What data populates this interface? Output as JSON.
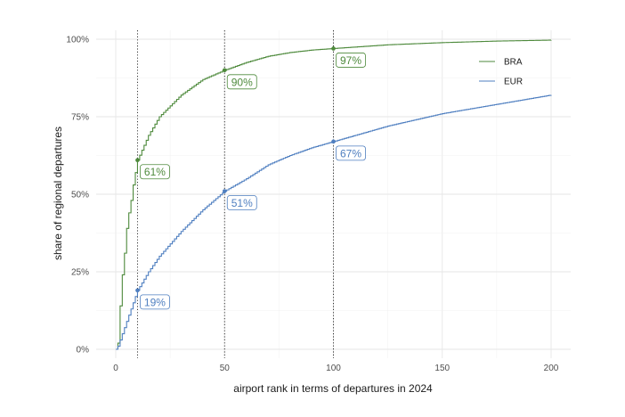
{
  "chart_data": {
    "type": "line",
    "xlabel": "airport rank in terms of departures in 2024",
    "ylabel": "share of regional departures",
    "xlim": [
      0,
      200
    ],
    "ylim": [
      0,
      1
    ],
    "x_ticks": [
      0,
      50,
      100,
      150,
      200
    ],
    "x_tick_labels": [
      "0",
      "50",
      "100",
      "150",
      "200"
    ],
    "y_ticks": [
      0,
      0.25,
      0.5,
      0.75,
      1.0
    ],
    "y_tick_labels": [
      "0%",
      "25%",
      "50%",
      "75%",
      "100%"
    ],
    "grid": true,
    "legend_position": "top-right",
    "vlines": [
      10,
      50,
      100
    ],
    "series": [
      {
        "name": "BRA",
        "color": "#4e8a3c",
        "x": [
          1,
          2,
          3,
          4,
          5,
          6,
          7,
          8,
          9,
          10,
          15,
          20,
          30,
          40,
          50,
          60,
          70,
          80,
          90,
          100,
          125,
          150,
          175,
          200
        ],
        "y": [
          0.02,
          0.14,
          0.24,
          0.31,
          0.39,
          0.44,
          0.48,
          0.53,
          0.57,
          0.61,
          0.69,
          0.75,
          0.82,
          0.87,
          0.9,
          0.925,
          0.945,
          0.957,
          0.965,
          0.97,
          0.982,
          0.989,
          0.994,
          0.997
        ]
      },
      {
        "name": "EUR",
        "color": "#4f7fc0",
        "x": [
          1,
          2,
          3,
          5,
          7,
          10,
          15,
          20,
          30,
          40,
          50,
          60,
          70,
          80,
          90,
          100,
          125,
          150,
          175,
          200
        ],
        "y": [
          0.01,
          0.03,
          0.05,
          0.09,
          0.13,
          0.19,
          0.25,
          0.3,
          0.38,
          0.45,
          0.51,
          0.55,
          0.595,
          0.625,
          0.65,
          0.67,
          0.72,
          0.76,
          0.79,
          0.82
        ]
      }
    ],
    "annotations": [
      {
        "series": "BRA",
        "x": 10,
        "y": 0.61,
        "label": "61%"
      },
      {
        "series": "BRA",
        "x": 50,
        "y": 0.9,
        "label": "90%"
      },
      {
        "series": "BRA",
        "x": 100,
        "y": 0.97,
        "label": "97%"
      },
      {
        "series": "EUR",
        "x": 10,
        "y": 0.19,
        "label": "19%"
      },
      {
        "series": "EUR",
        "x": 50,
        "y": 0.51,
        "label": "51%"
      },
      {
        "series": "EUR",
        "x": 100,
        "y": 0.67,
        "label": "67%"
      }
    ]
  }
}
